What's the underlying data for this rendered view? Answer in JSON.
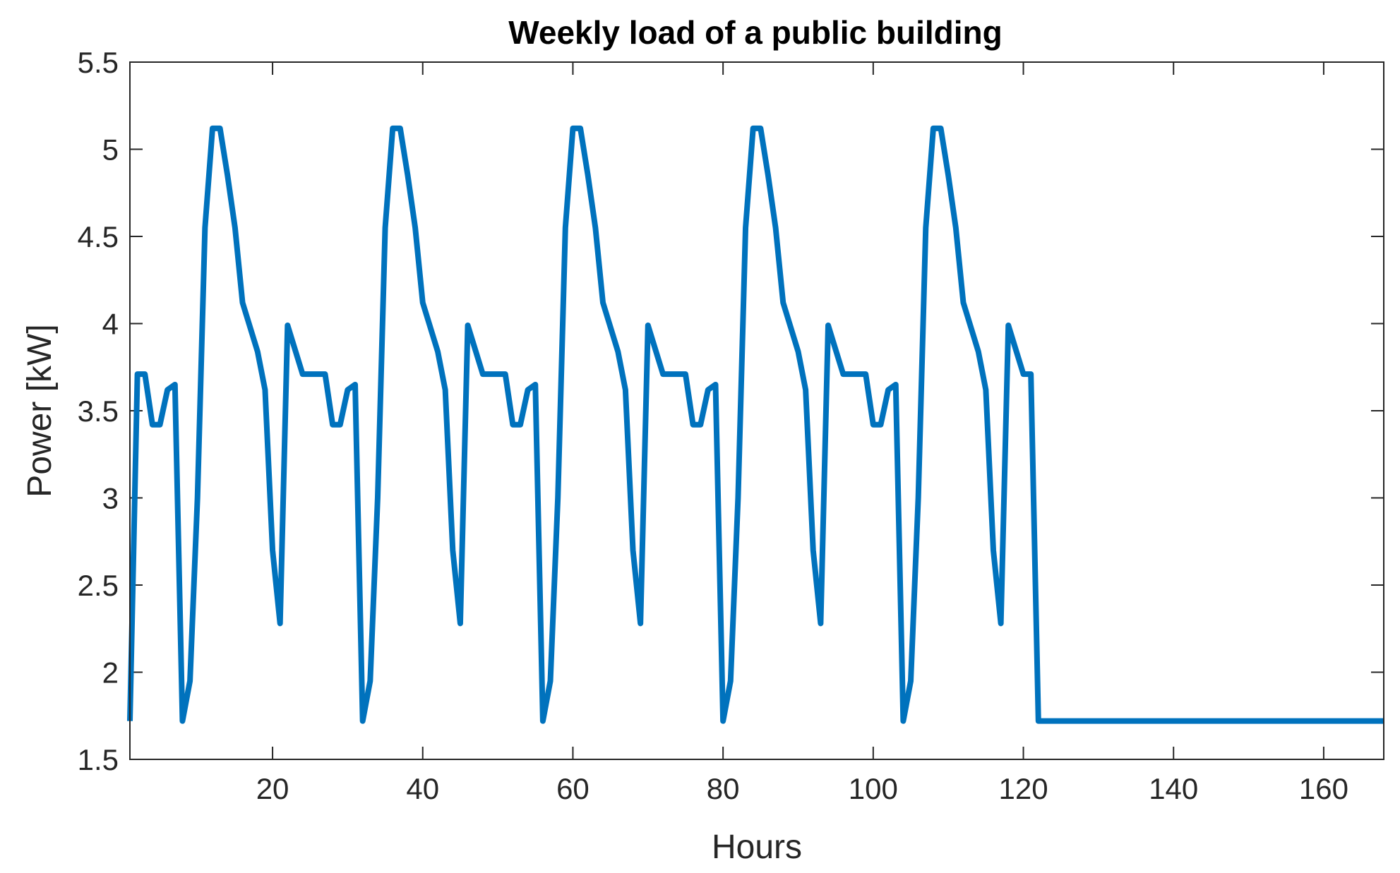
{
  "chart_data": {
    "type": "line",
    "title": "Weekly load of a public building",
    "xlabel": "Hours",
    "ylabel": "Power [kW]",
    "xlim": [
      1,
      168
    ],
    "ylim": [
      1.5,
      5.5
    ],
    "xticks": [
      20,
      40,
      60,
      80,
      100,
      120,
      140,
      160
    ],
    "yticks": [
      1.5,
      2,
      2.5,
      3,
      3.5,
      4,
      4.5,
      5,
      5.5
    ],
    "xtick_labels": [
      "20",
      "40",
      "60",
      "80",
      "100",
      "120",
      "140",
      "160"
    ],
    "ytick_labels": [
      "1.5",
      "2",
      "2.5",
      "3",
      "3.5",
      "4",
      "4.5",
      "5",
      "5.5"
    ],
    "grid": false,
    "box": true,
    "line_color": "#0072BD",
    "series": [
      {
        "x": [
          1,
          2,
          3,
          4,
          5,
          6,
          7,
          8,
          9,
          10,
          11,
          12,
          13,
          14,
          15,
          16,
          17,
          18,
          19,
          20,
          21,
          22,
          23,
          24,
          25,
          26,
          27,
          28,
          29,
          30,
          31,
          32,
          33,
          34,
          35,
          36,
          37,
          38,
          39,
          40,
          41,
          42,
          43,
          44,
          45,
          46,
          47,
          48,
          49,
          50,
          51,
          52,
          53,
          54,
          55,
          56,
          57,
          58,
          59,
          60,
          61,
          62,
          63,
          64,
          65,
          66,
          67,
          68,
          69,
          70,
          71,
          72,
          73,
          74,
          75,
          76,
          77,
          78,
          79,
          80,
          81,
          82,
          83,
          84,
          85,
          86,
          87,
          88,
          89,
          90,
          91,
          92,
          93,
          94,
          95,
          96,
          97,
          98,
          99,
          100,
          101,
          102,
          103,
          104,
          105,
          106,
          107,
          108,
          109,
          110,
          111,
          112,
          113,
          114,
          115,
          116,
          117,
          118,
          119,
          120,
          121,
          122,
          168
        ],
        "values": [
          1.72,
          3.71,
          3.71,
          3.42,
          3.42,
          3.62,
          3.65,
          1.72,
          1.95,
          3.0,
          4.55,
          5.12,
          5.12,
          4.85,
          4.55,
          4.12,
          3.98,
          3.84,
          3.62,
          2.7,
          2.28,
          3.99,
          3.85,
          3.71,
          3.71,
          3.71,
          3.71,
          3.42,
          3.42,
          3.62,
          3.65,
          1.72,
          1.95,
          3.0,
          4.55,
          5.12,
          5.12,
          4.85,
          4.55,
          4.12,
          3.98,
          3.84,
          3.62,
          2.7,
          2.28,
          3.99,
          3.85,
          3.71,
          3.71,
          3.71,
          3.71,
          3.42,
          3.42,
          3.62,
          3.65,
          1.72,
          1.95,
          3.0,
          4.55,
          5.12,
          5.12,
          4.85,
          4.55,
          4.12,
          3.98,
          3.84,
          3.62,
          2.7,
          2.28,
          3.99,
          3.85,
          3.71,
          3.71,
          3.71,
          3.71,
          3.42,
          3.42,
          3.62,
          3.65,
          1.72,
          1.95,
          3.0,
          4.55,
          5.12,
          5.12,
          4.85,
          4.55,
          4.12,
          3.98,
          3.84,
          3.62,
          2.7,
          2.28,
          3.99,
          3.85,
          3.71,
          3.71,
          3.71,
          3.71,
          3.42,
          3.42,
          3.62,
          3.65,
          1.72,
          1.95,
          3.0,
          4.55,
          5.12,
          5.12,
          4.85,
          4.55,
          4.12,
          3.98,
          3.84,
          3.62,
          2.7,
          2.28,
          3.99,
          3.85,
          3.71,
          3.71,
          1.72,
          1.72
        ]
      }
    ]
  }
}
